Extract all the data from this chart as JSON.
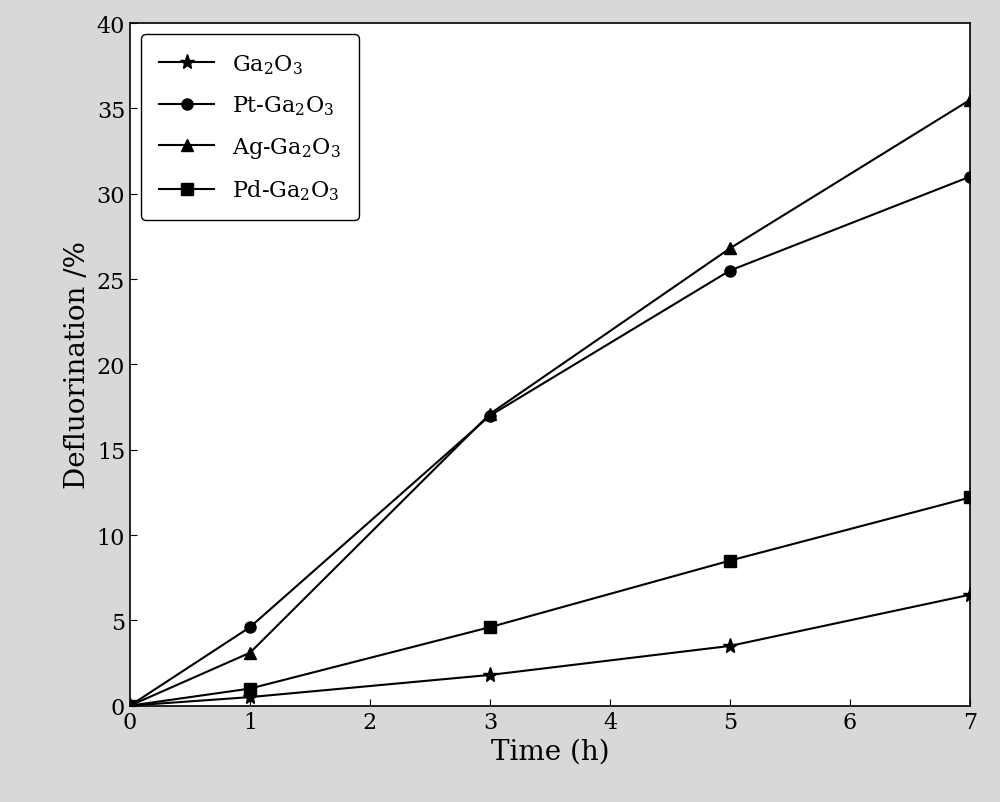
{
  "series": [
    {
      "label": "Ga$_2$O$_3$",
      "x": [
        0,
        1,
        3,
        5,
        7
      ],
      "y": [
        0,
        0.5,
        1.8,
        3.5,
        6.5
      ],
      "marker": "*",
      "markersize": 11,
      "color": "#000000",
      "linestyle": "-"
    },
    {
      "label": "Pt-Ga$_2$O$_3$",
      "x": [
        0,
        1,
        3,
        5,
        7
      ],
      "y": [
        0,
        4.6,
        17.0,
        25.5,
        31.0
      ],
      "marker": "o",
      "markersize": 8,
      "color": "#000000",
      "linestyle": "-"
    },
    {
      "label": "Ag-Ga$_2$O$_3$",
      "x": [
        0,
        1,
        3,
        5,
        7
      ],
      "y": [
        0,
        3.1,
        17.1,
        26.8,
        35.5
      ],
      "marker": "^",
      "markersize": 8,
      "color": "#000000",
      "linestyle": "-"
    },
    {
      "label": "Pd-Ga$_2$O$_3$",
      "x": [
        0,
        1,
        3,
        5,
        7
      ],
      "y": [
        0,
        1.0,
        4.6,
        8.5,
        12.2
      ],
      "marker": "s",
      "markersize": 8,
      "color": "#000000",
      "linestyle": "-"
    }
  ],
  "xlabel": "Time (h)",
  "ylabel": "Defluorination /%",
  "xlim": [
    0,
    7
  ],
  "ylim": [
    0,
    40
  ],
  "xticks": [
    0,
    1,
    2,
    3,
    4,
    5,
    6,
    7
  ],
  "yticks": [
    0,
    5,
    10,
    15,
    20,
    25,
    30,
    35,
    40
  ],
  "legend_loc": "upper left",
  "legend_fontsize": 16,
  "axis_label_fontsize": 20,
  "tick_fontsize": 16,
  "linewidth": 1.5,
  "background_color": "#d8d8d8",
  "plot_background_color": "#ffffff"
}
